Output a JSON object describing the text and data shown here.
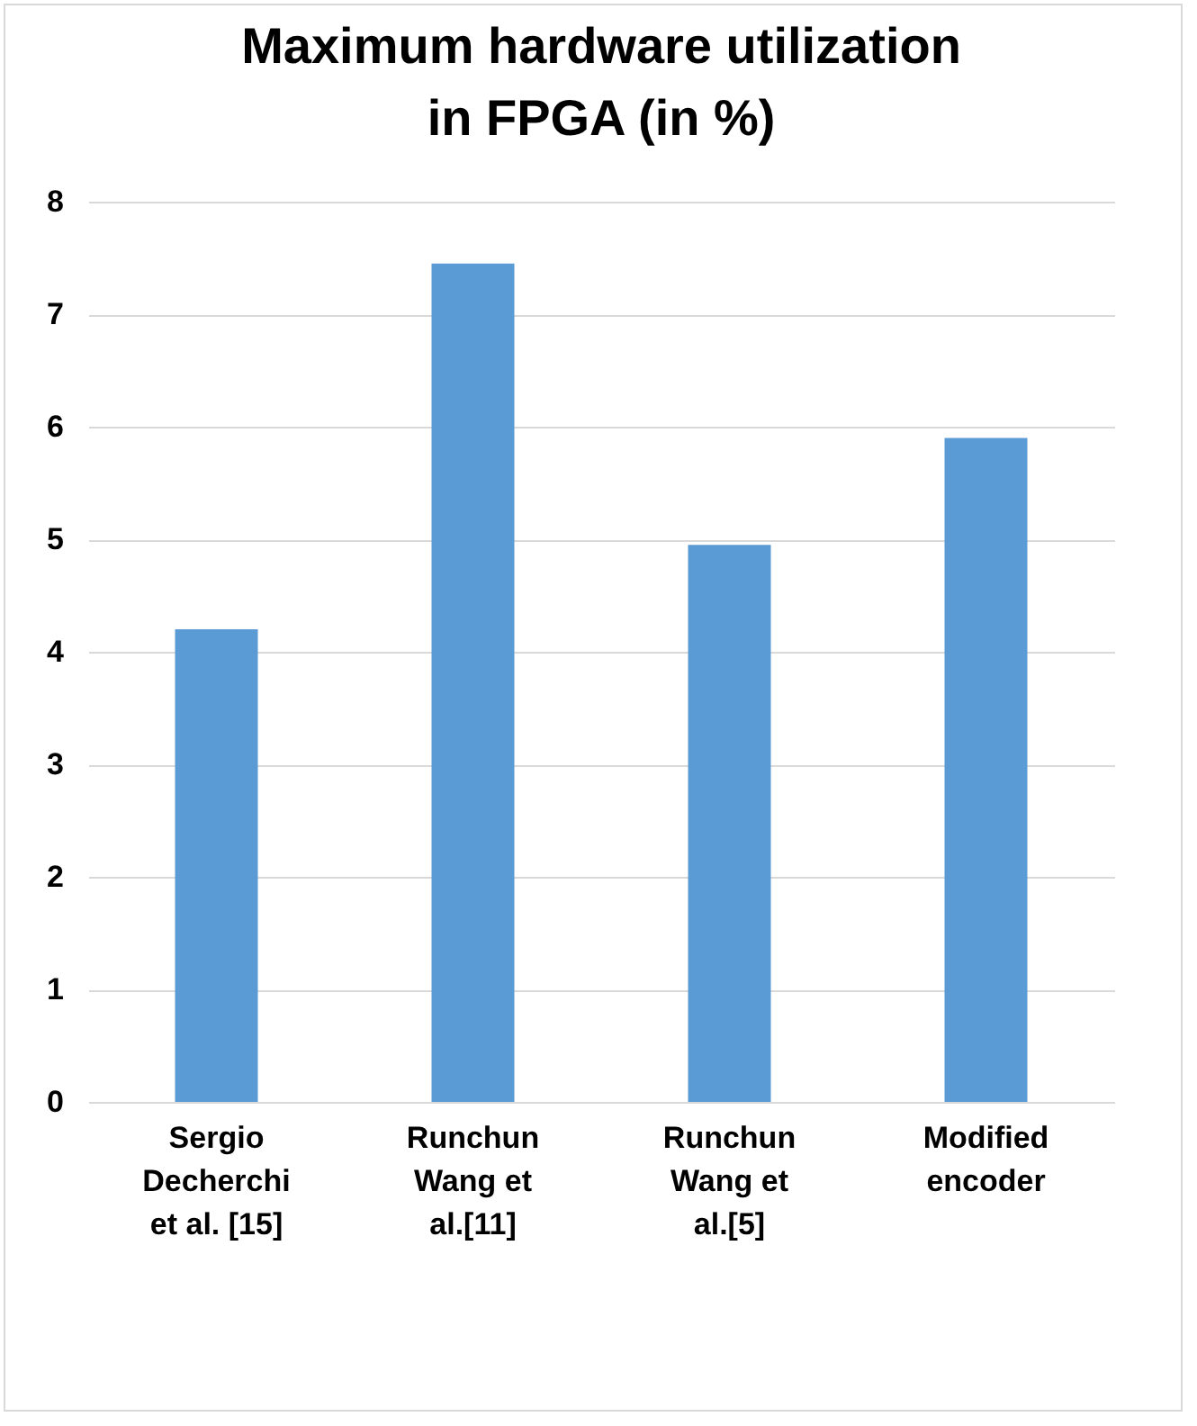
{
  "chart_data": {
    "type": "bar",
    "title": "Maximum hardware utilization in FPGA (in %)",
    "categories": [
      "Sergio Decherchi et al. [15]",
      "Runchun Wang et al.[11]",
      "Runchun Wang et al.[5]",
      "Modified encoder"
    ],
    "values": [
      4.2,
      7.45,
      4.95,
      5.9
    ],
    "color": "#5b9bd5",
    "ylim": [
      0,
      8
    ],
    "yticks": [
      0,
      1,
      2,
      3,
      4,
      5,
      6,
      7,
      8
    ],
    "grid": "y"
  }
}
